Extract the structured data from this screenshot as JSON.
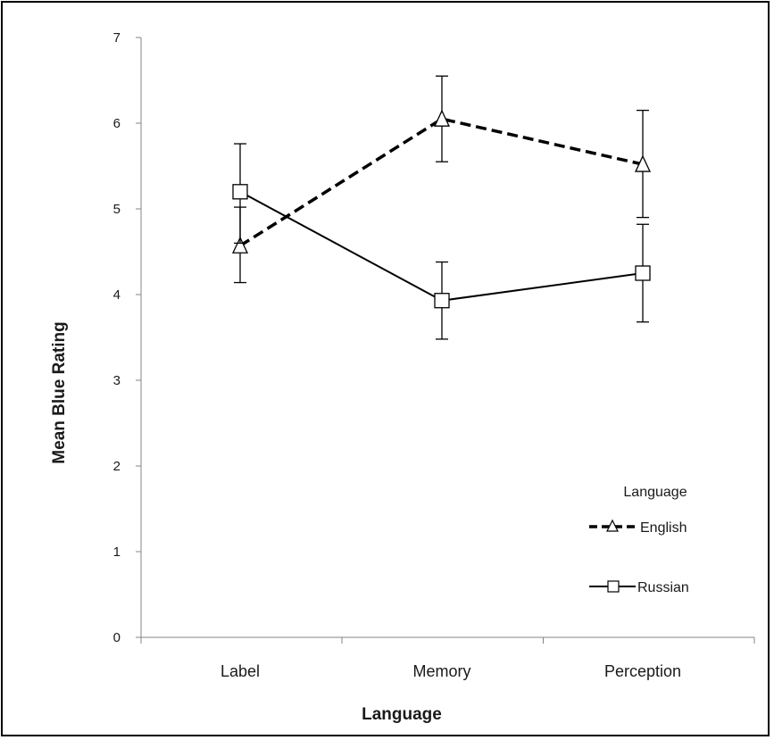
{
  "chart_data": {
    "type": "line",
    "title": "",
    "xlabel": "Language",
    "ylabel": "Mean Blue Rating",
    "categories": [
      "Label",
      "Memory",
      "Perception"
    ],
    "ylim": [
      0,
      7
    ],
    "yticks": [
      "0",
      "1",
      "2",
      "3",
      "4",
      "5",
      "6",
      "7"
    ],
    "grid": false,
    "legend": {
      "title": "Language",
      "position": "right"
    },
    "series": [
      {
        "name": "English",
        "style": "dashed",
        "marker": "triangle",
        "color": "#000000",
        "values": [
          4.57,
          6.05,
          5.52
        ],
        "error_low": [
          4.14,
          5.55,
          4.9
        ],
        "error_high": [
          5.02,
          6.55,
          6.15
        ]
      },
      {
        "name": "Russian",
        "style": "solid",
        "marker": "square",
        "color": "#000000",
        "values": [
          5.2,
          3.93,
          4.25
        ],
        "error_low": [
          4.6,
          3.48,
          3.68
        ],
        "error_high": [
          5.76,
          4.38,
          4.82
        ]
      }
    ]
  }
}
